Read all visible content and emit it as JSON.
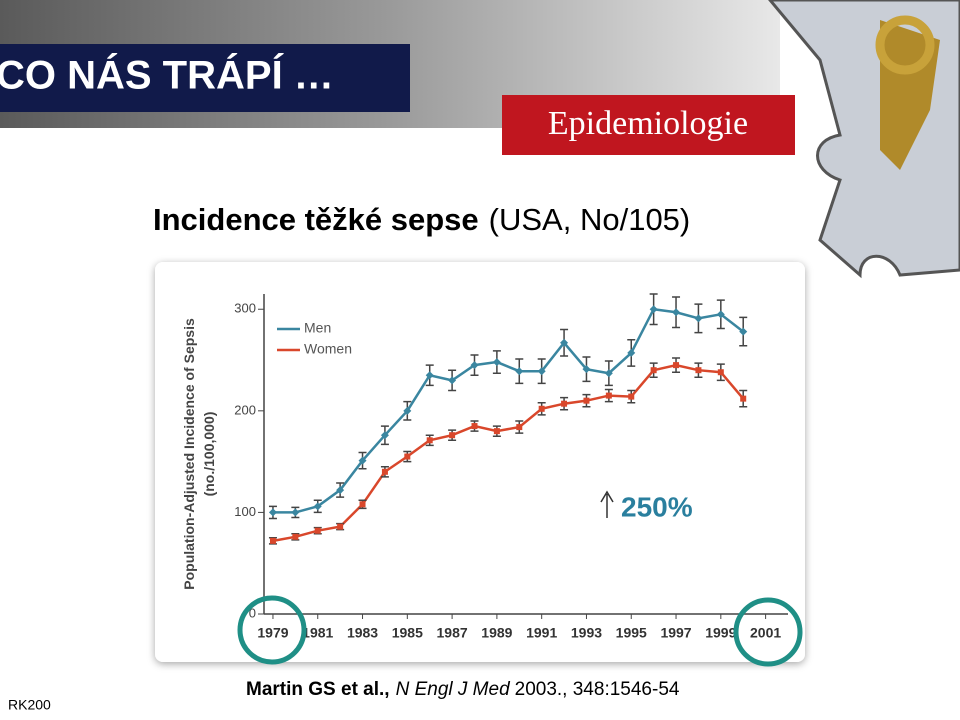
{
  "header": {
    "section": "CO NÁS TRÁPÍ …",
    "topic": "Epidemiologie"
  },
  "title": {
    "bold": "Incidence těžké sepse",
    "rest": "(USA, No/105)"
  },
  "citation": {
    "authors": "Martin GS et al.,",
    "journal": "N Engl J Med",
    "details": "2003., 348:1546-54"
  },
  "footer": "RK200",
  "chart_data": {
    "type": "line",
    "y_label": [
      "Population-Adjusted Incidence of Sepsis",
      "(no./100,000)"
    ],
    "annotation": "250%",
    "x": [
      1979,
      1980,
      1981,
      1982,
      1983,
      1984,
      1985,
      1986,
      1987,
      1988,
      1989,
      1990,
      1991,
      1992,
      1993,
      1994,
      1995,
      1996,
      1997,
      1998,
      1999,
      2000
    ],
    "series": [
      {
        "name": "Men",
        "color": "#3a86a0",
        "values": [
          100,
          100,
          106,
          122,
          151,
          176,
          200,
          235,
          230,
          245,
          248,
          239,
          239,
          267,
          241,
          237,
          257,
          300,
          297,
          291,
          295,
          278
        ],
        "errors": [
          6,
          5,
          6,
          7,
          8,
          9,
          9,
          10,
          10,
          10,
          11,
          12,
          12,
          13,
          12,
          12,
          13,
          15,
          15,
          14,
          14,
          14
        ]
      },
      {
        "name": "Women",
        "color": "#d9472b",
        "values": [
          72,
          76,
          82,
          86,
          108,
          140,
          155,
          171,
          176,
          185,
          180,
          184,
          202,
          207,
          210,
          215,
          214,
          240,
          245,
          240,
          238,
          212
        ],
        "errors": [
          3,
          3,
          3,
          3,
          4,
          5,
          5,
          5,
          5,
          5,
          5,
          6,
          6,
          6,
          6,
          6,
          6,
          7,
          7,
          7,
          8,
          8
        ]
      }
    ],
    "xlim": [
      1978.6,
      2002
    ],
    "xticks": [
      1979,
      1981,
      1983,
      1985,
      1987,
      1989,
      1991,
      1993,
      1995,
      1997,
      1999,
      2001
    ],
    "ylim": [
      0,
      315
    ],
    "yticks": [
      0,
      100,
      200,
      300
    ]
  }
}
